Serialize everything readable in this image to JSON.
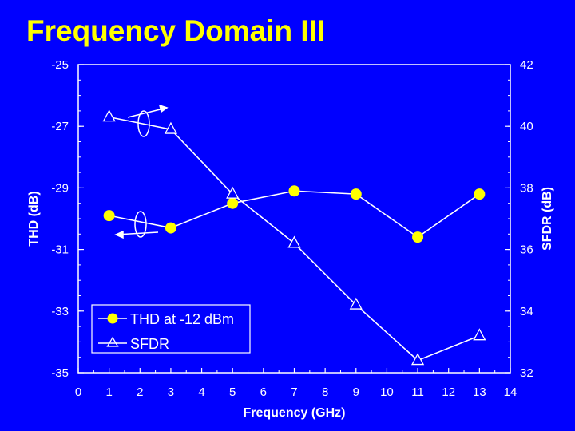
{
  "slide": {
    "title": "Frequency Domain III"
  },
  "colors": {
    "background": "#0000ff",
    "title": "#ffff00",
    "plot_bg": "#0000ff",
    "foreground": "#ffffff",
    "thd_marker": "#ffff00"
  },
  "chart_data": {
    "type": "line",
    "title": "",
    "xlabel": "Frequency (GHz)",
    "ylabel_left": "THD (dB)",
    "ylabel_right": "SFDR (dB)",
    "xlim": [
      0,
      14
    ],
    "ylim_left": [
      -35,
      -25
    ],
    "ylim_right": [
      32,
      42
    ],
    "x_ticks": [
      "0",
      "1",
      "2",
      "3",
      "4",
      "5",
      "6",
      "7",
      "8",
      "9",
      "10",
      "11",
      "12",
      "13",
      "14"
    ],
    "y_left_ticks": [
      "-25",
      "-27",
      "-29",
      "-31",
      "-33",
      "-35"
    ],
    "y_right_ticks": [
      "42",
      "40",
      "38",
      "36",
      "34",
      "32"
    ],
    "grid": false,
    "legend_position": "bottom-left",
    "series": [
      {
        "name": "THD at -12 dBm",
        "axis": "left",
        "marker": "filled-circle",
        "x": [
          1,
          3,
          5,
          7,
          9,
          11,
          13
        ],
        "y": [
          -29.9,
          -30.3,
          -29.5,
          -29.1,
          -29.2,
          -30.6,
          -29.2
        ]
      },
      {
        "name": "SFDR",
        "axis": "right",
        "marker": "open-triangle",
        "x": [
          1,
          3,
          5,
          7,
          9,
          11,
          13
        ],
        "y": [
          40.3,
          39.9,
          37.8,
          36.2,
          34.2,
          32.4,
          33.2
        ]
      }
    ]
  }
}
